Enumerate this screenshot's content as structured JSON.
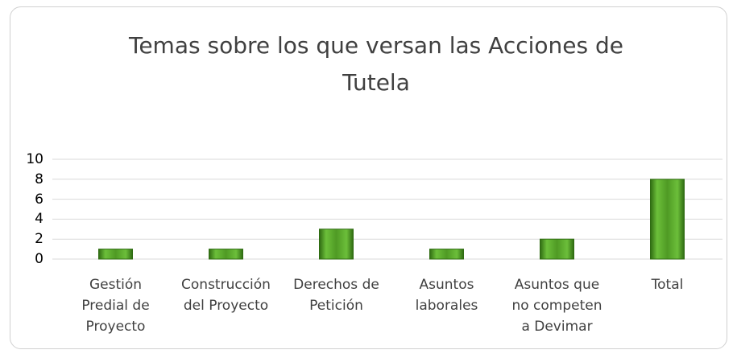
{
  "chart_data": {
    "type": "bar",
    "title": "Temas sobre los que versan las Acciones de Tutela",
    "categories": [
      "Gestión Predial de Proyecto",
      "Construcción del Proyecto",
      "Derechos de Petición",
      "Asuntos laborales",
      "Asuntos que no competen a Devimar",
      "Total"
    ],
    "values": [
      1,
      1,
      3,
      1,
      2,
      8
    ],
    "color": "#5aa02c",
    "ylim": [
      0,
      10
    ],
    "yticks": [
      0,
      2,
      4,
      6,
      8,
      10
    ],
    "grid": true
  }
}
